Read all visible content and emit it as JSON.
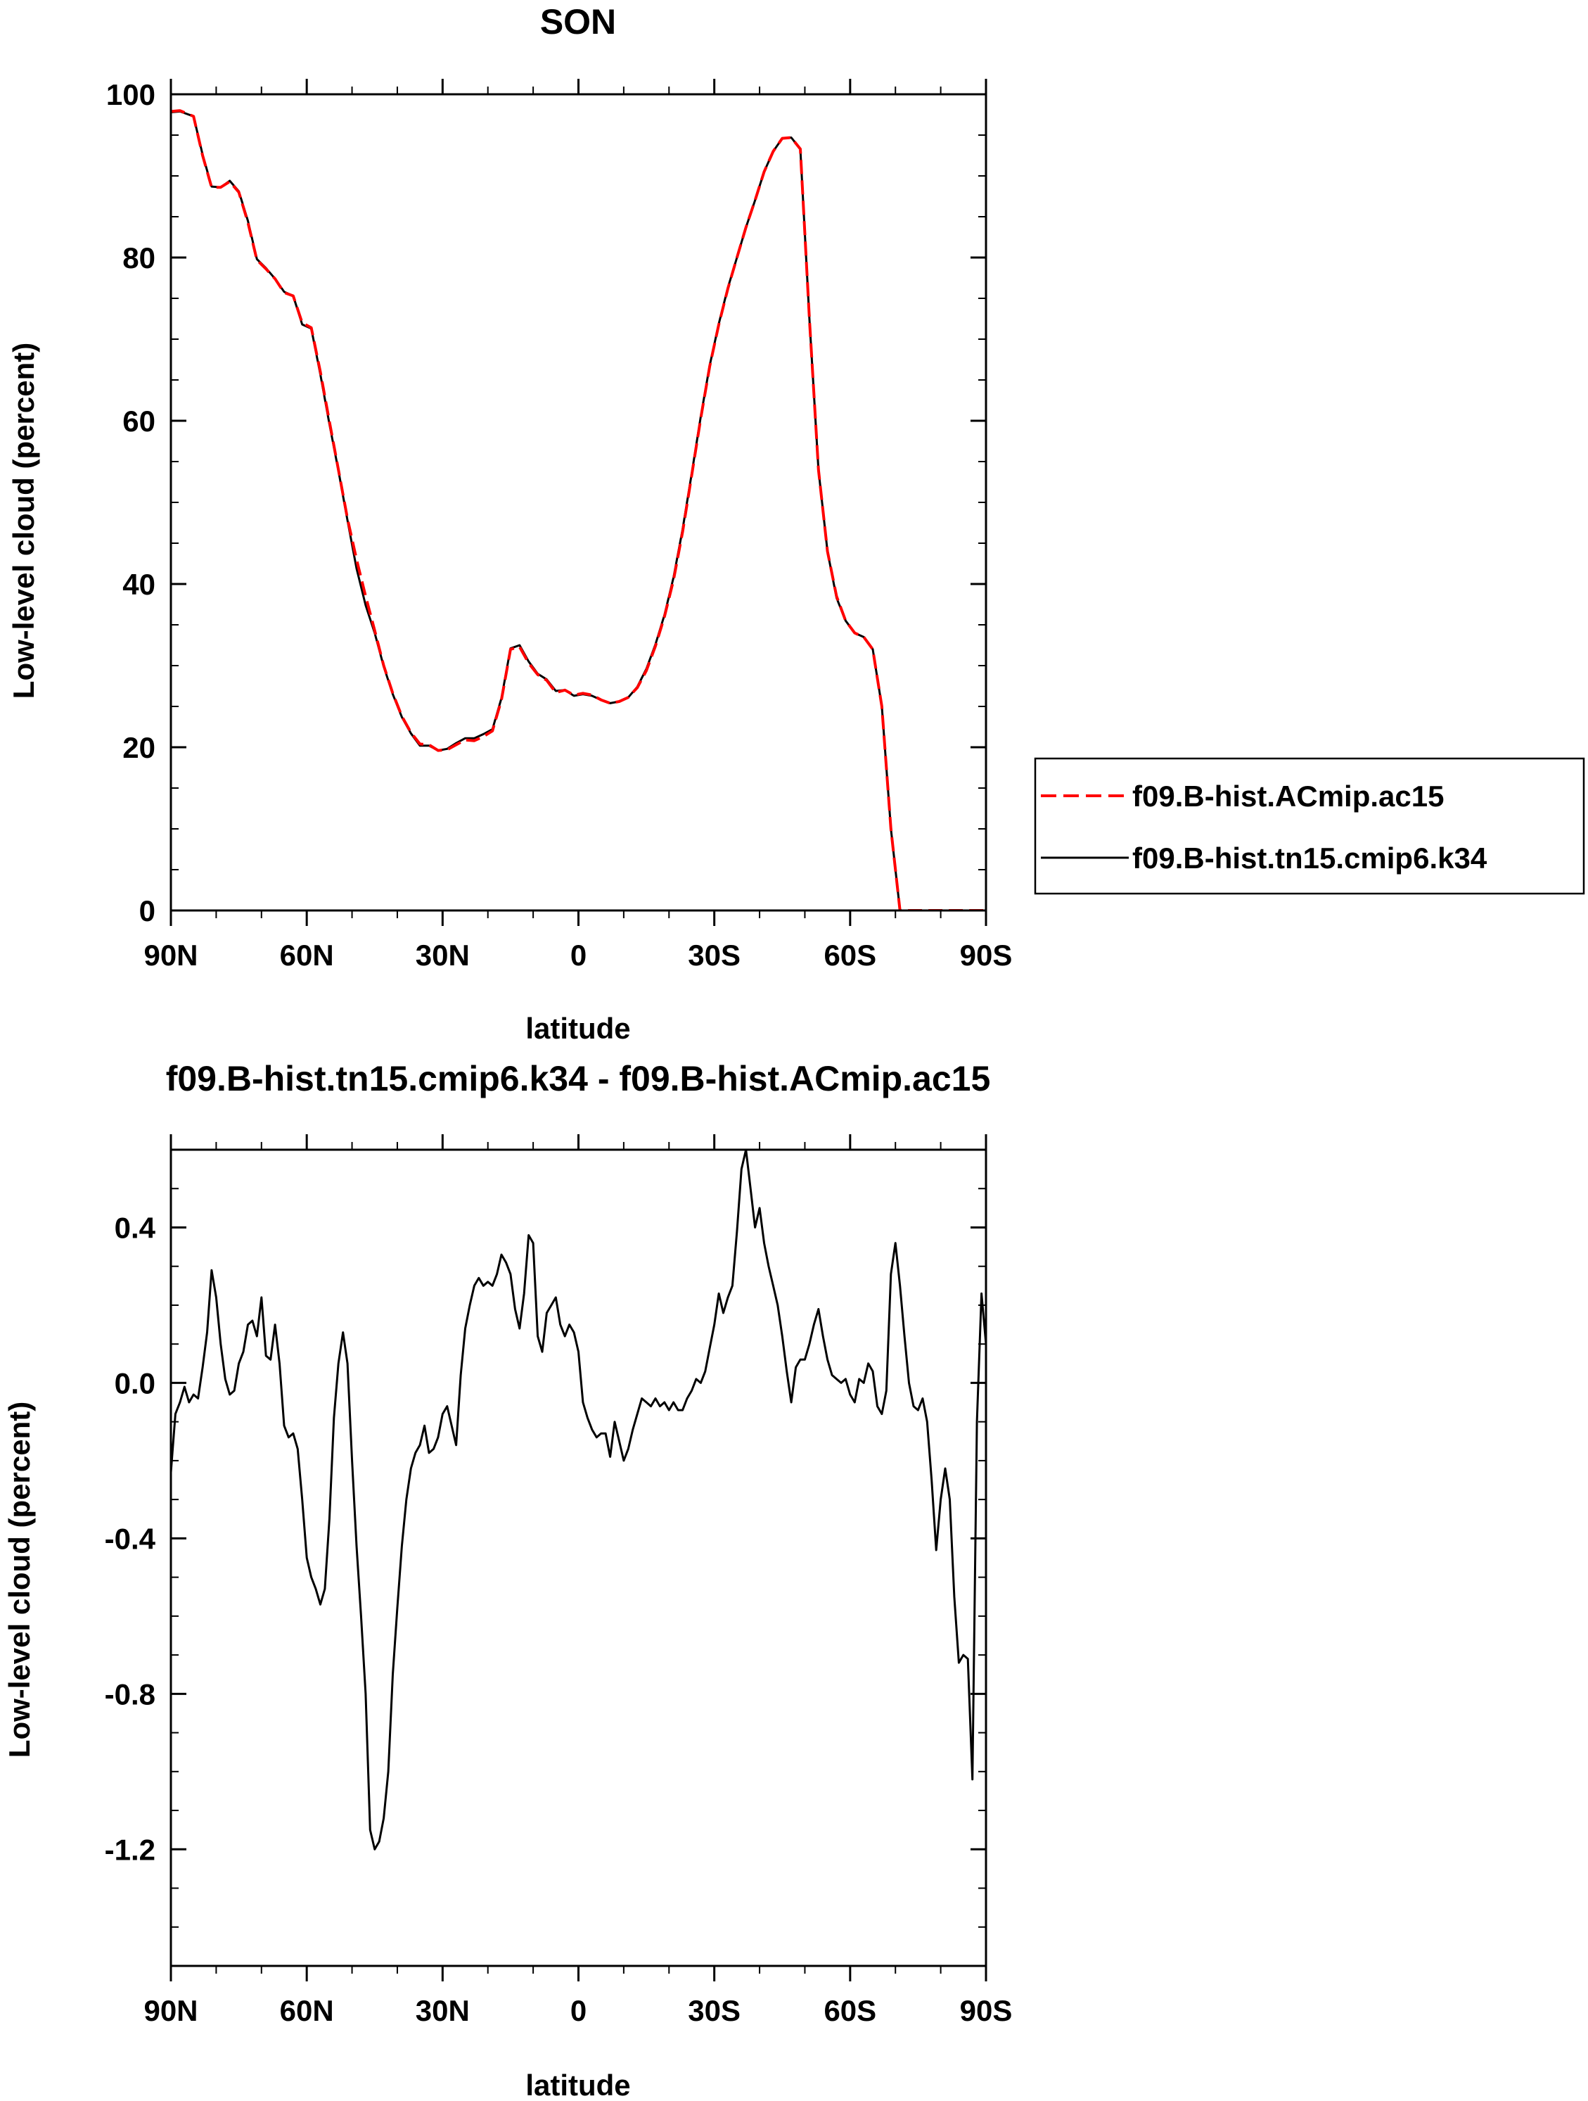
{
  "chart_data": [
    {
      "type": "line",
      "title": "SON",
      "xlabel": "latitude",
      "ylabel": "Low-level cloud (percent)",
      "xlim": [
        90,
        -90
      ],
      "ylim": [
        0,
        100
      ],
      "xticks": [
        {
          "value": 90,
          "label": "90N"
        },
        {
          "value": 60,
          "label": "60N"
        },
        {
          "value": 30,
          "label": "30N"
        },
        {
          "value": 0,
          "label": "0"
        },
        {
          "value": -30,
          "label": "30S"
        },
        {
          "value": -60,
          "label": "60S"
        },
        {
          "value": -90,
          "label": "90S"
        }
      ],
      "yticks": [
        {
          "value": 100,
          "label": "100"
        },
        {
          "value": 80,
          "label": "80"
        },
        {
          "value": 60,
          "label": "60"
        },
        {
          "value": 40,
          "label": "40"
        },
        {
          "value": 20,
          "label": "20"
        },
        {
          "value": 0,
          "label": "0"
        }
      ],
      "legend_position": "right",
      "x": [
        90,
        88,
        85,
        83,
        81,
        79,
        77,
        75,
        73,
        71,
        69,
        67,
        65,
        63,
        61,
        59,
        57,
        55,
        53,
        51,
        49,
        47,
        45,
        43,
        41,
        39,
        37,
        35,
        33,
        31,
        29,
        27,
        25,
        23,
        21,
        19,
        17,
        15,
        13,
        11,
        9,
        7,
        5,
        3,
        1,
        -1,
        -3,
        -5,
        -7,
        -9,
        -11,
        -13,
        -15,
        -17,
        -19,
        -21,
        -23,
        -25,
        -27,
        -29,
        -31,
        -33,
        -35,
        -37,
        -39,
        -41,
        -43,
        -45,
        -47,
        -49,
        -51,
        -53,
        -55,
        -57,
        -59,
        -61,
        -63,
        -65,
        -67,
        -69,
        -71,
        -73,
        -75,
        -77,
        -79,
        -81,
        -83,
        -85,
        -87,
        -89,
        -90
      ],
      "series": [
        {
          "name": "f09.B-hist.ACmip.ac15",
          "color": "#ff0000",
          "dash": "dashed",
          "values": [
            97.9,
            98.0,
            97.3,
            92.5,
            88.6,
            88.6,
            89.3,
            88.0,
            84.3,
            79.7,
            78.6,
            77.4,
            75.7,
            75.3,
            72.0,
            71.4,
            66.0,
            59.9,
            54.0,
            48.0,
            43.0,
            38.5,
            34.3,
            30.0,
            26.6,
            23.8,
            21.8,
            20.4,
            20.3,
            19.6,
            19.7,
            20.3,
            20.9,
            20.8,
            21.3,
            22.0,
            25.8,
            32.0,
            32.3,
            30.3,
            28.9,
            28.2,
            26.7,
            27.0,
            26.4,
            26.6,
            26.4,
            25.8,
            25.4,
            25.6,
            26.1,
            27.3,
            29.4,
            32.4,
            36.0,
            40.5,
            46.4,
            53.3,
            60.3,
            66.7,
            71.8,
            76.2,
            80.0,
            83.7,
            87.0,
            90.5,
            93.0,
            94.6,
            94.7,
            93.3,
            72.5,
            54.0,
            44.0,
            38.5,
            35.5,
            34.0,
            33.5,
            32.0,
            25.0,
            10.0,
            0.0,
            0.0,
            0.0,
            0.0,
            0.0,
            0.0,
            0.0,
            0.0,
            0.0,
            0.0,
            0.0
          ]
        },
        {
          "name": "f09.B-hist.tn15.cmip6.k34",
          "color": "#000000",
          "dash": "solid",
          "values": [
            97.8,
            97.9,
            97.3,
            92.6,
            88.7,
            88.6,
            89.4,
            88.1,
            84.5,
            79.8,
            78.7,
            77.4,
            75.8,
            75.3,
            71.8,
            71.3,
            65.7,
            59.6,
            53.9,
            47.8,
            41.9,
            37.4,
            34.0,
            29.9,
            26.5,
            23.7,
            21.7,
            20.2,
            20.2,
            19.6,
            19.8,
            20.5,
            21.1,
            21.1,
            21.6,
            22.2,
            26.0,
            32.1,
            32.5,
            30.5,
            29.0,
            28.3,
            26.9,
            27.0,
            26.3,
            26.5,
            26.3,
            25.8,
            25.4,
            25.6,
            26.1,
            27.4,
            29.6,
            32.6,
            36.2,
            40.8,
            46.7,
            53.5,
            60.5,
            66.8,
            71.9,
            76.3,
            80.0,
            83.7,
            87.0,
            90.5,
            93.0,
            94.6,
            94.7,
            93.3,
            72.5,
            54.0,
            44.0,
            38.3,
            35.5,
            34.0,
            33.5,
            32.0,
            25.0,
            10.0,
            0.0,
            0.0,
            0.0,
            0.0,
            0.0,
            0.0,
            0.0,
            0.0,
            0.0,
            0.0,
            0.0
          ]
        }
      ]
    },
    {
      "type": "line",
      "title": "f09.B-hist.tn15.cmip6.k34 - f09.B-hist.ACmip.ac15",
      "xlabel": "latitude",
      "ylabel": "Low-level cloud (percent)",
      "xlim": [
        90,
        -90
      ],
      "ylim": [
        -1.5,
        0.6
      ],
      "xticks": [
        {
          "value": 90,
          "label": "90N"
        },
        {
          "value": 60,
          "label": "60N"
        },
        {
          "value": 30,
          "label": "30N"
        },
        {
          "value": 0,
          "label": "0"
        },
        {
          "value": -30,
          "label": "30S"
        },
        {
          "value": -60,
          "label": "60S"
        },
        {
          "value": -90,
          "label": "90S"
        }
      ],
      "yticks": [
        {
          "value": 0.4,
          "label": "0.4"
        },
        {
          "value": 0.0,
          "label": "0.0"
        },
        {
          "value": -0.4,
          "label": "-0.4"
        },
        {
          "value": -0.8,
          "label": "-0.8"
        },
        {
          "value": -1.2,
          "label": "-1.2"
        }
      ],
      "series": [
        {
          "color": "#000000",
          "dash": "solid",
          "x": [
            90,
            89,
            88,
            87,
            86,
            85,
            84,
            83,
            82,
            81,
            80,
            79,
            78,
            77,
            76,
            75,
            74,
            73,
            72,
            71,
            70,
            69,
            68,
            67,
            66,
            65,
            64,
            63,
            62,
            61,
            60,
            59,
            58,
            57,
            56,
            55,
            54,
            53,
            52,
            51,
            50,
            49,
            48,
            47,
            46,
            45,
            44,
            43,
            42,
            41,
            40,
            39,
            38,
            37,
            36,
            35,
            34,
            33,
            32,
            31,
            30,
            29,
            28,
            27,
            26,
            25,
            24,
            23,
            22,
            21,
            20,
            19,
            18,
            17,
            16,
            15,
            14,
            13,
            12,
            11,
            10,
            9,
            8,
            7,
            6,
            5,
            4,
            3,
            2,
            1,
            0,
            -1,
            -2,
            -3,
            -4,
            -5,
            -6,
            -7,
            -8,
            -9,
            -10,
            -11,
            -12,
            -13,
            -14,
            -15,
            -16,
            -17,
            -18,
            -19,
            -20,
            -21,
            -22,
            -23,
            -24,
            -25,
            -26,
            -27,
            -28,
            -29,
            -30,
            -31,
            -32,
            -33,
            -34,
            -35,
            -36,
            -37,
            -38,
            -39,
            -40,
            -41,
            -42,
            -43,
            -44,
            -45,
            -46,
            -47,
            -48,
            -49,
            -50,
            -51,
            -52,
            -53,
            -54,
            -55,
            -56,
            -57,
            -58,
            -59,
            -60,
            -61,
            -62,
            -63,
            -64,
            -65,
            -66,
            -67,
            -68,
            -69,
            -70,
            -71,
            -72,
            -73,
            -74,
            -75,
            -76,
            -77,
            -78,
            -79,
            -80,
            -81,
            -82,
            -83,
            -84,
            -85,
            -86,
            -87,
            -88,
            -89,
            -90
          ],
          "values": [
            -0.23,
            -0.08,
            -0.05,
            -0.01,
            -0.05,
            -0.03,
            -0.04,
            0.04,
            0.13,
            0.29,
            0.22,
            0.1,
            0.01,
            -0.03,
            -0.02,
            0.05,
            0.08,
            0.15,
            0.16,
            0.12,
            0.22,
            0.07,
            0.06,
            0.15,
            0.05,
            -0.11,
            -0.14,
            -0.13,
            -0.17,
            -0.3,
            -0.45,
            -0.5,
            -0.53,
            -0.57,
            -0.53,
            -0.35,
            -0.09,
            0.05,
            0.13,
            0.05,
            -0.2,
            -0.42,
            -0.6,
            -0.8,
            -1.15,
            -1.2,
            -1.18,
            -1.12,
            -1.0,
            -0.75,
            -0.58,
            -0.42,
            -0.3,
            -0.22,
            -0.18,
            -0.16,
            -0.11,
            -0.18,
            -0.17,
            -0.14,
            -0.08,
            -0.06,
            -0.11,
            -0.16,
            0.02,
            0.14,
            0.2,
            0.25,
            0.27,
            0.25,
            0.26,
            0.25,
            0.28,
            0.33,
            0.31,
            0.28,
            0.19,
            0.14,
            0.23,
            0.38,
            0.36,
            0.12,
            0.08,
            0.18,
            0.2,
            0.22,
            0.15,
            0.12,
            0.15,
            0.13,
            0.08,
            -0.05,
            -0.09,
            -0.12,
            -0.14,
            -0.13,
            -0.13,
            -0.19,
            -0.1,
            -0.15,
            -0.2,
            -0.17,
            -0.12,
            -0.08,
            -0.04,
            -0.05,
            -0.06,
            -0.04,
            -0.06,
            -0.05,
            -0.07,
            -0.05,
            -0.07,
            -0.07,
            -0.04,
            -0.02,
            0.01,
            0.0,
            0.03,
            0.09,
            0.15,
            0.23,
            0.18,
            0.22,
            0.25,
            0.39,
            0.55,
            0.6,
            0.5,
            0.4,
            0.45,
            0.36,
            0.3,
            0.25,
            0.2,
            0.12,
            0.03,
            -0.05,
            0.04,
            0.06,
            0.06,
            0.1,
            0.15,
            0.19,
            0.12,
            0.06,
            0.02,
            0.01,
            0.0,
            0.01,
            -0.03,
            -0.05,
            0.01,
            0.0,
            0.05,
            0.03,
            -0.06,
            -0.08,
            -0.02,
            0.28,
            0.36,
            0.25,
            0.12,
            0.0,
            -0.06,
            -0.07,
            -0.04,
            -0.1,
            -0.25,
            -0.43,
            -0.3,
            -0.22,
            -0.3,
            -0.55,
            -0.72,
            -0.7,
            -0.71,
            -1.02,
            -0.1,
            0.23,
            0.1
          ]
        }
      ]
    }
  ]
}
